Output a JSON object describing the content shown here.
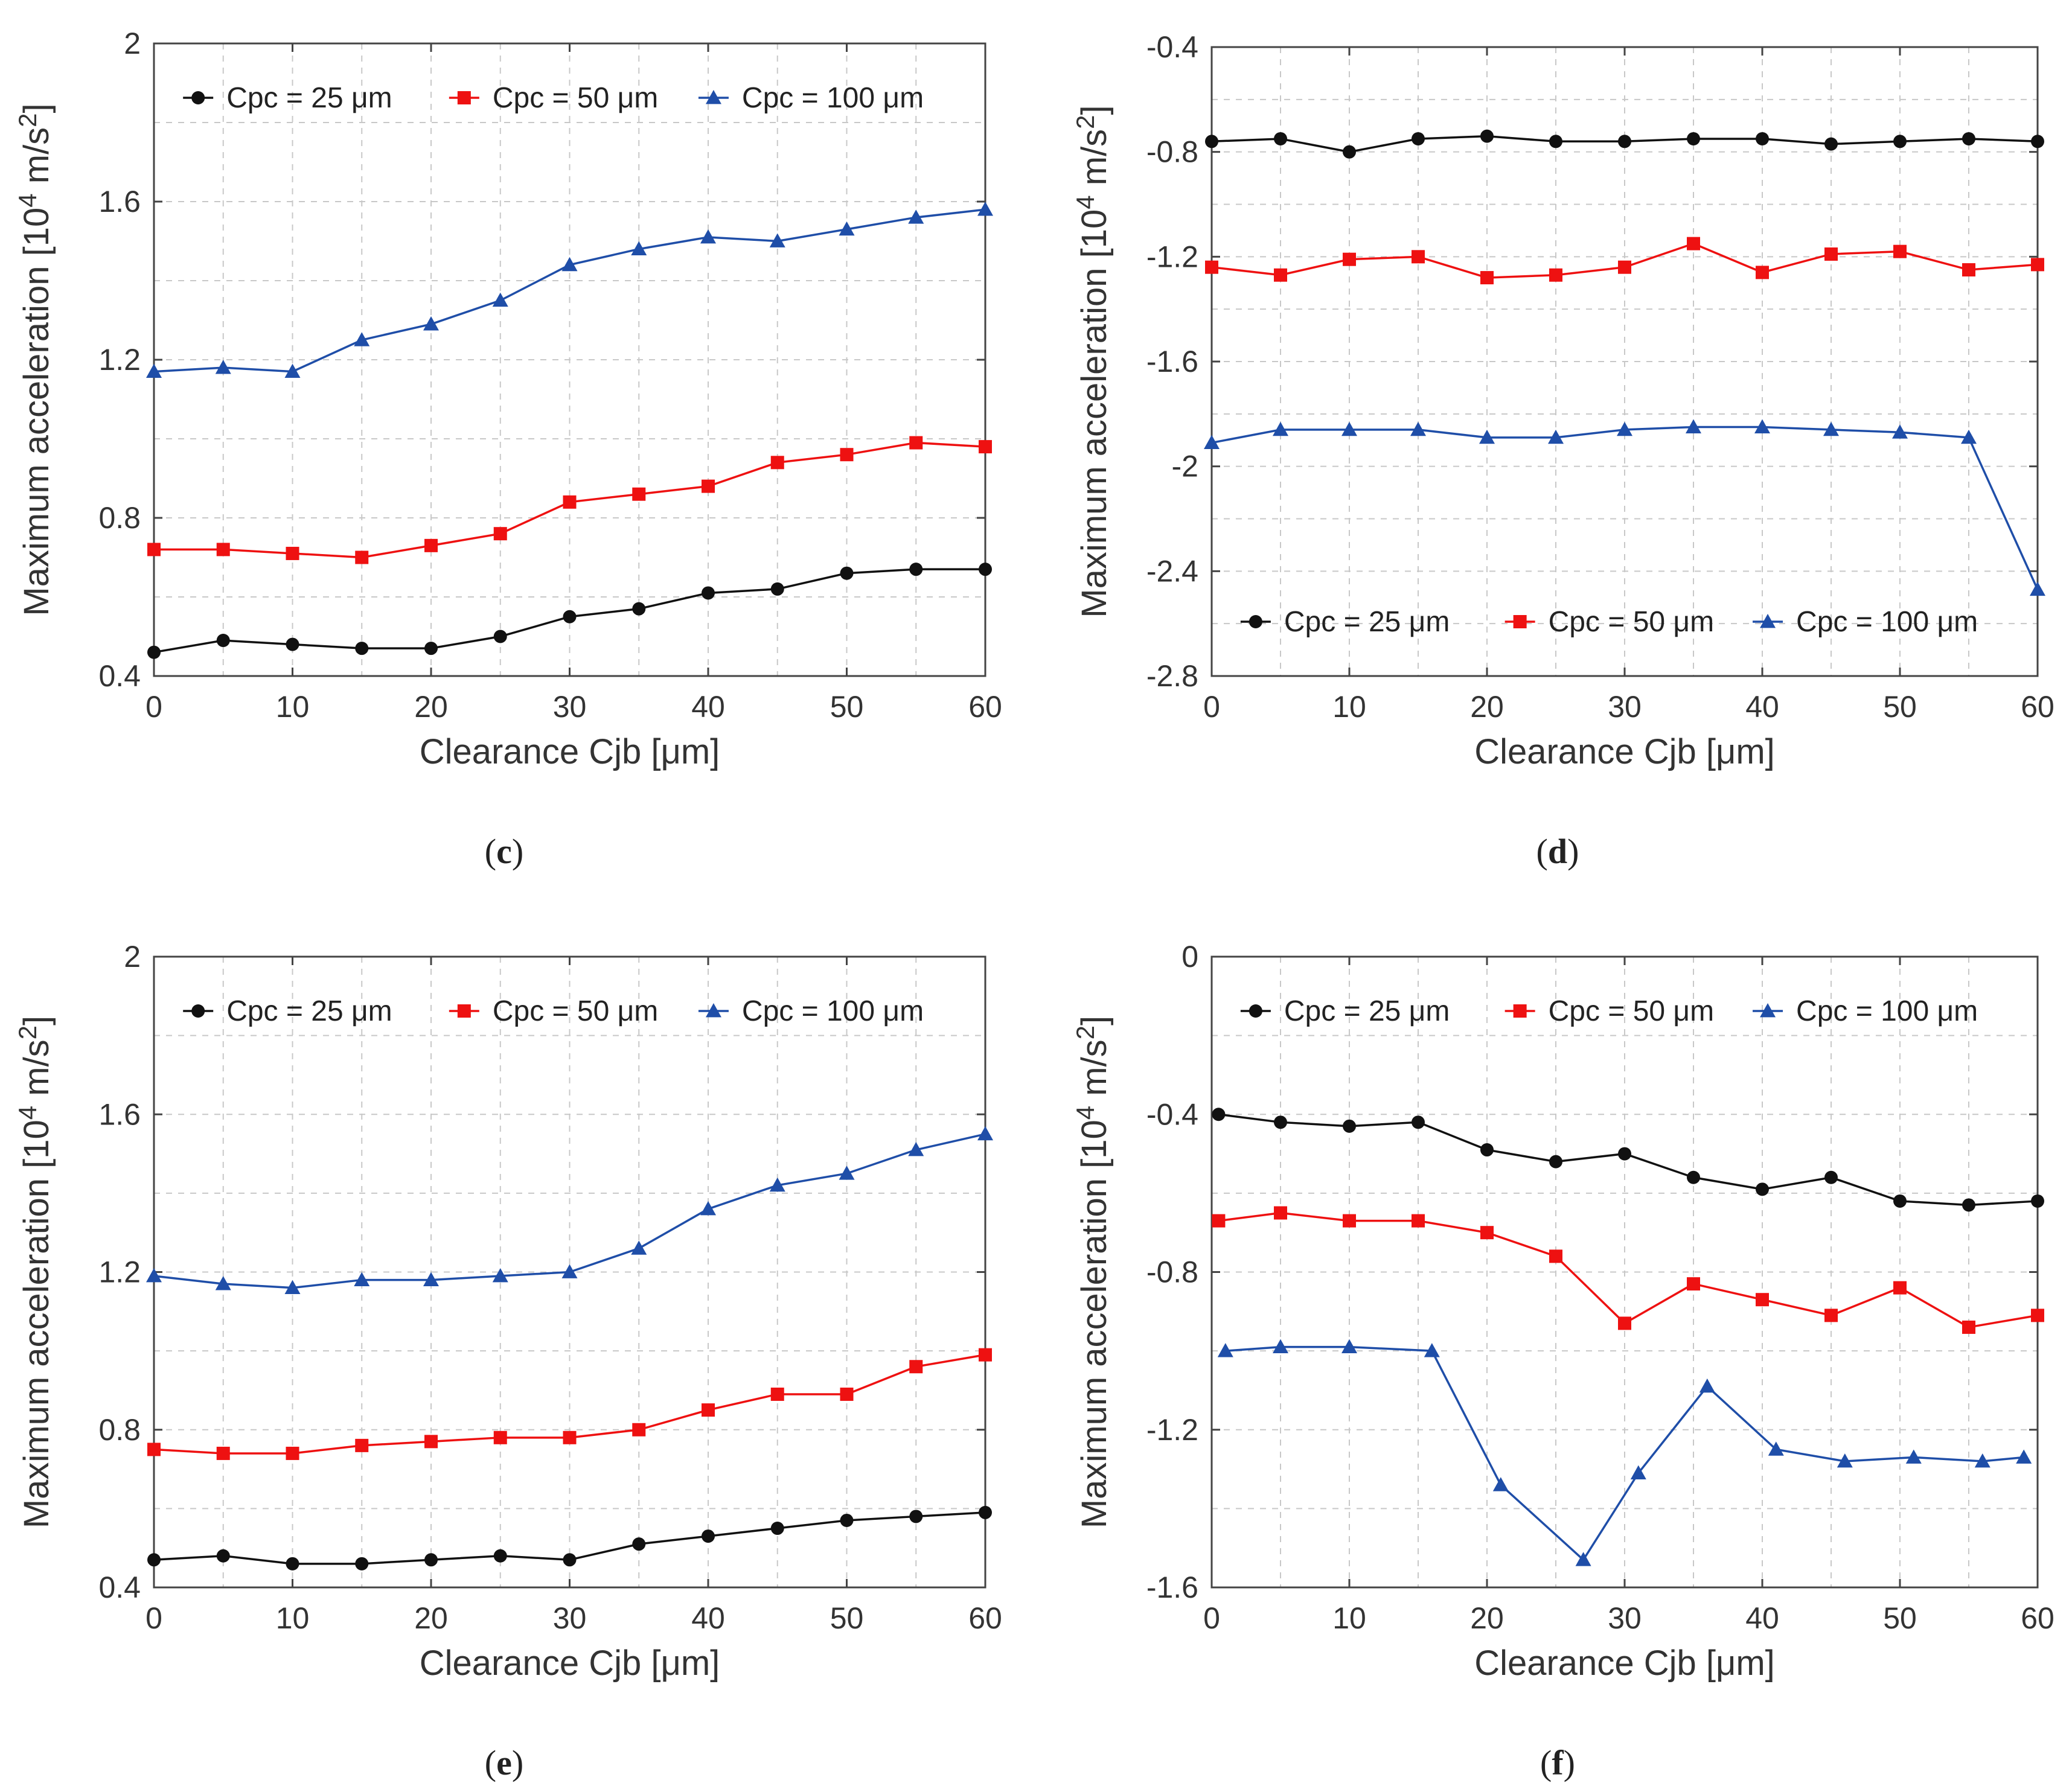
{
  "colors": {
    "black": "#111111",
    "red": "#ee1111",
    "blue": "#1f4ea8"
  },
  "chart_data": [
    {
      "type": "line",
      "panel": "c",
      "caption_label": "c",
      "xlabel": "Clearance Cjb [μm]",
      "ylabel": "Maximum acceleration [10^4 m/s^2]",
      "ylabel_parts": [
        "Maximum acceleration [10",
        "4",
        " m/s",
        "2",
        "]"
      ],
      "xlim": [
        0,
        60
      ],
      "ylim": [
        0.4,
        2
      ],
      "xticks": [
        0,
        10,
        20,
        30,
        40,
        50,
        60
      ],
      "xtick_labels": [
        "0",
        "10",
        "20",
        "30",
        "40",
        "50",
        "60"
      ],
      "yticks": [
        0.4,
        0.8,
        1.2,
        1.6,
        2
      ],
      "ytick_labels": [
        "0.4",
        "0.8",
        "1.2",
        "1.6",
        "2"
      ],
      "legend_position": "top",
      "series": [
        {
          "name": "Cpc = 25 μm",
          "color": "black",
          "marker": "circle",
          "x": [
            0,
            5,
            10,
            15,
            20,
            25,
            30,
            35,
            40,
            45,
            50,
            55,
            60
          ],
          "y": [
            0.46,
            0.49,
            0.48,
            0.47,
            0.47,
            0.5,
            0.55,
            0.57,
            0.61,
            0.62,
            0.66,
            0.67,
            0.67
          ]
        },
        {
          "name": "Cpc = 50 μm",
          "color": "red",
          "marker": "square",
          "x": [
            0,
            5,
            10,
            15,
            20,
            25,
            30,
            35,
            40,
            45,
            50,
            55,
            60
          ],
          "y": [
            0.72,
            0.72,
            0.71,
            0.7,
            0.73,
            0.76,
            0.84,
            0.86,
            0.88,
            0.94,
            0.96,
            0.99,
            0.98
          ]
        },
        {
          "name": "Cpc = 100 μm",
          "color": "blue",
          "marker": "triangle",
          "x": [
            0,
            5,
            10,
            15,
            20,
            25,
            30,
            35,
            40,
            45,
            50,
            55,
            60
          ],
          "y": [
            1.17,
            1.18,
            1.17,
            1.25,
            1.29,
            1.35,
            1.44,
            1.48,
            1.51,
            1.5,
            1.53,
            1.56,
            1.58
          ]
        }
      ]
    },
    {
      "type": "line",
      "panel": "d",
      "caption_label": "d",
      "xlabel": "Clearance Cjb [μm]",
      "ylabel": "Maximum acceleration [10^4 m/s^2]",
      "ylabel_parts": [
        "Maximum acceleration [10",
        "4",
        " m/s",
        "2",
        "]"
      ],
      "xlim": [
        0,
        60
      ],
      "ylim": [
        -2.8,
        -0.4
      ],
      "xticks": [
        0,
        10,
        20,
        30,
        40,
        50,
        60
      ],
      "xtick_labels": [
        "0",
        "10",
        "20",
        "30",
        "40",
        "50",
        "60"
      ],
      "yticks": [
        -2.8,
        -2.4,
        -2,
        -1.6,
        -1.2,
        -0.8,
        -0.4
      ],
      "ytick_labels": [
        "-2.8",
        "-2.4",
        "-2",
        "-1.6",
        "-1.2",
        "-0.8",
        "-0.4"
      ],
      "legend_position": "bottom",
      "series": [
        {
          "name": "Cpc = 25 μm",
          "color": "black",
          "marker": "circle",
          "x": [
            0,
            5,
            10,
            15,
            20,
            25,
            30,
            35,
            40,
            45,
            50,
            55,
            60
          ],
          "y": [
            -0.76,
            -0.75,
            -0.8,
            -0.75,
            -0.74,
            -0.76,
            -0.76,
            -0.75,
            -0.75,
            -0.77,
            -0.76,
            -0.75,
            -0.76
          ]
        },
        {
          "name": "Cpc = 50 μm",
          "color": "red",
          "marker": "square",
          "x": [
            0,
            5,
            10,
            15,
            20,
            25,
            30,
            35,
            40,
            45,
            50,
            55,
            60
          ],
          "y": [
            -1.24,
            -1.27,
            -1.21,
            -1.2,
            -1.28,
            -1.27,
            -1.24,
            -1.15,
            -1.26,
            -1.19,
            -1.18,
            -1.25,
            -1.23
          ]
        },
        {
          "name": "Cpc = 100 μm",
          "color": "blue",
          "marker": "triangle",
          "x": [
            0,
            5,
            10,
            15,
            20,
            25,
            30,
            35,
            40,
            45,
            50,
            55,
            60
          ],
          "y": [
            -1.91,
            -1.86,
            -1.86,
            -1.86,
            -1.89,
            -1.89,
            -1.86,
            -1.85,
            -1.85,
            -1.86,
            -1.87,
            -1.89,
            -2.47
          ]
        }
      ]
    },
    {
      "type": "line",
      "panel": "e",
      "caption_label": "e",
      "xlabel": "Clearance Cjb [μm]",
      "ylabel": "Maximum acceleration [10^4 m/s^2]",
      "ylabel_parts": [
        "Maximum acceleration [10",
        "4",
        " m/s",
        "2",
        "]"
      ],
      "xlim": [
        0,
        60
      ],
      "ylim": [
        0.4,
        2
      ],
      "xticks": [
        0,
        10,
        20,
        30,
        40,
        50,
        60
      ],
      "xtick_labels": [
        "0",
        "10",
        "20",
        "30",
        "40",
        "50",
        "60"
      ],
      "yticks": [
        0.4,
        0.8,
        1.2,
        1.6,
        2
      ],
      "ytick_labels": [
        "0.4",
        "0.8",
        "1.2",
        "1.6",
        "2"
      ],
      "legend_position": "top",
      "series": [
        {
          "name": "Cpc = 25 μm",
          "color": "black",
          "marker": "circle",
          "x": [
            0,
            5,
            10,
            15,
            20,
            25,
            30,
            35,
            40,
            45,
            50,
            55,
            60
          ],
          "y": [
            0.47,
            0.48,
            0.46,
            0.46,
            0.47,
            0.48,
            0.47,
            0.51,
            0.53,
            0.55,
            0.57,
            0.58,
            0.59
          ]
        },
        {
          "name": "Cpc = 50 μm",
          "color": "red",
          "marker": "square",
          "x": [
            0,
            5,
            10,
            15,
            20,
            25,
            30,
            35,
            40,
            45,
            50,
            55,
            60
          ],
          "y": [
            0.75,
            0.74,
            0.74,
            0.76,
            0.77,
            0.78,
            0.78,
            0.8,
            0.85,
            0.89,
            0.89,
            0.96,
            0.99
          ]
        },
        {
          "name": "Cpc = 100 μm",
          "color": "blue",
          "marker": "triangle",
          "x": [
            0,
            5,
            10,
            15,
            20,
            25,
            30,
            35,
            40,
            45,
            50,
            55,
            60
          ],
          "y": [
            1.19,
            1.17,
            1.16,
            1.18,
            1.18,
            1.19,
            1.2,
            1.26,
            1.36,
            1.42,
            1.45,
            1.51,
            1.55
          ]
        }
      ]
    },
    {
      "type": "line",
      "panel": "f",
      "caption_label": "f",
      "xlabel": "Clearance Cjb [μm]",
      "ylabel": "Maximum acceleration [10^4 m/s^2]",
      "ylabel_parts": [
        "Maximum acceleration [10",
        "4",
        " m/s",
        "2",
        "]"
      ],
      "xlim": [
        0,
        60
      ],
      "ylim": [
        -1.6,
        0
      ],
      "xticks": [
        0,
        10,
        20,
        30,
        40,
        50,
        60
      ],
      "xtick_labels": [
        "0",
        "10",
        "20",
        "30",
        "40",
        "50",
        "60"
      ],
      "yticks": [
        -1.6,
        -1.2,
        -0.8,
        -0.4,
        0
      ],
      "ytick_labels": [
        "-1.6",
        "-1.2",
        "-0.8",
        "-0.4",
        "0"
      ],
      "legend_position": "top",
      "series": [
        {
          "name": "Cpc = 25 μm",
          "color": "black",
          "marker": "circle",
          "x": [
            0.5,
            5,
            10,
            15,
            20,
            25,
            30,
            35,
            40,
            45,
            50,
            55,
            60
          ],
          "y": [
            -0.4,
            -0.42,
            -0.43,
            -0.42,
            -0.49,
            -0.52,
            -0.5,
            -0.56,
            -0.59,
            -0.56,
            -0.62,
            -0.63,
            -0.62
          ]
        },
        {
          "name": "Cpc = 50 μm",
          "color": "red",
          "marker": "square",
          "x": [
            0.5,
            5,
            10,
            15,
            20,
            25,
            30,
            35,
            40,
            45,
            50,
            55,
            60
          ],
          "y": [
            -0.67,
            -0.65,
            -0.67,
            -0.67,
            -0.7,
            -0.76,
            -0.93,
            -0.83,
            -0.87,
            -0.91,
            -0.84,
            -0.94,
            -0.91
          ]
        },
        {
          "name": "Cpc = 100 μm",
          "color": "blue",
          "marker": "triangle",
          "x": [
            1,
            5,
            10,
            16,
            21,
            27,
            31,
            36,
            41,
            46,
            51,
            56,
            59
          ],
          "y": [
            -1.0,
            -0.99,
            -0.99,
            -1.0,
            -1.34,
            -1.53,
            -1.31,
            -1.09,
            -1.25,
            -1.28,
            -1.27,
            -1.28,
            -1.27
          ]
        }
      ]
    }
  ]
}
